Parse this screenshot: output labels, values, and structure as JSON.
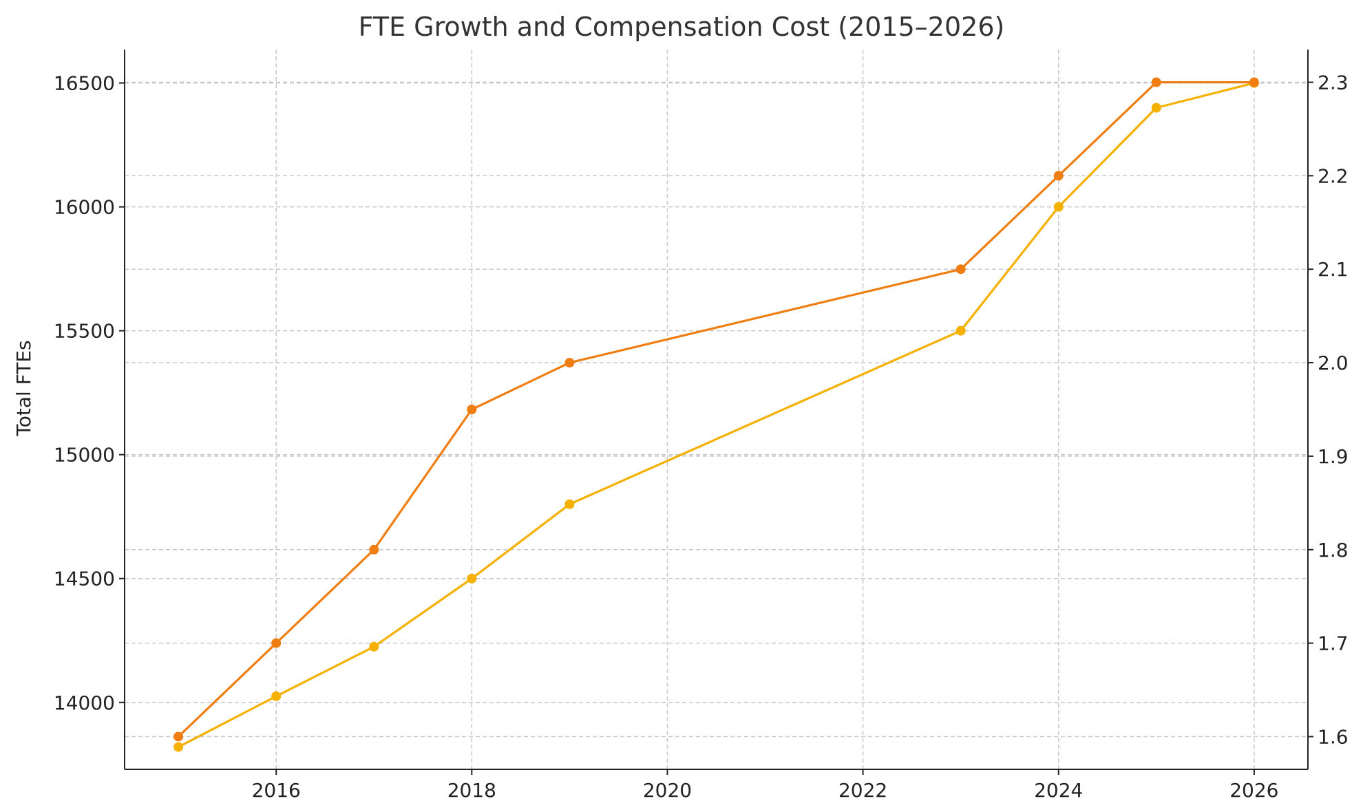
{
  "chart_data": {
    "type": "line",
    "title": "FTE Growth and Compensation Cost (2015–2026)",
    "ylabel": "Total FTEs",
    "y2label": "",
    "x": [
      2015,
      2016,
      2017,
      2018,
      2019,
      2023,
      2024,
      2025,
      2026
    ],
    "xlim": [
      2014.45,
      2026.55
    ],
    "xticks": [
      2016,
      2018,
      2020,
      2022,
      2024,
      2026
    ],
    "ylim": [
      13730,
      16635
    ],
    "yticks": [
      14000,
      14500,
      15000,
      15500,
      16000,
      16500
    ],
    "y2lim": [
      1.565,
      2.335
    ],
    "y2ticks": [
      1.6,
      1.7,
      1.8,
      1.9,
      2.0,
      2.1,
      2.2,
      2.3
    ],
    "y2tick_labels": [
      "1.6",
      "1.7",
      "1.8",
      "1.9",
      "2.0",
      "2.1",
      "2.2",
      "2.3"
    ],
    "grid": true,
    "series": [
      {
        "axis": "left",
        "color": "#f5b000",
        "values": [
          13820,
          14025,
          14225,
          14500,
          14800,
          15500,
          16000,
          16400,
          16500
        ]
      },
      {
        "axis": "right",
        "color": "#f07d12",
        "values": [
          1.6,
          1.7,
          1.8,
          1.95,
          2.0,
          2.1,
          2.2,
          2.3,
          2.3
        ]
      }
    ]
  }
}
